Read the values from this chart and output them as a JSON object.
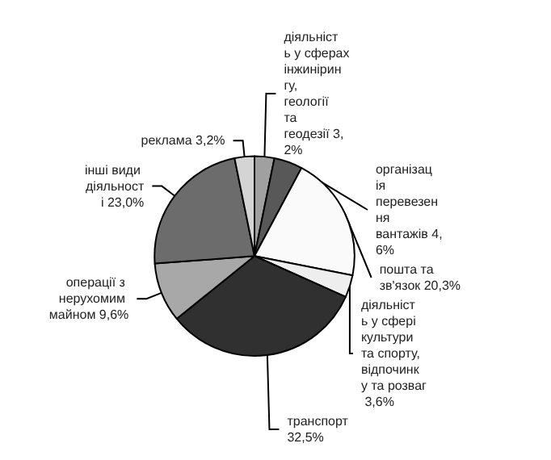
{
  "chart_data": {
    "type": "pie",
    "categories": [
      "діяльність у сферах інжинірингу, геології та геодезії",
      "організація перевезення вантажів",
      "пошта та зв'язок",
      "діяльність у сфері культури та спорту, відпочинку та розваг",
      "транспорт",
      "операції з нерухомим майном",
      "інші види діяльності",
      "реклама"
    ],
    "values": [
      3.2,
      4.6,
      20.3,
      3.6,
      32.5,
      9.6,
      23.0,
      3.2
    ],
    "value_labels": [
      "3,2%",
      "4,6%",
      "20,3%",
      "3,6%",
      "32,5%",
      "9,6%",
      "23,0%",
      "3,2%"
    ],
    "colors": [
      "#a0a0a0",
      "#585858",
      "#fafafa",
      "#eeeeee",
      "#303030",
      "#a8a8a8",
      "#6c6c6c",
      "#d4d4d4"
    ],
    "legend": false
  }
}
